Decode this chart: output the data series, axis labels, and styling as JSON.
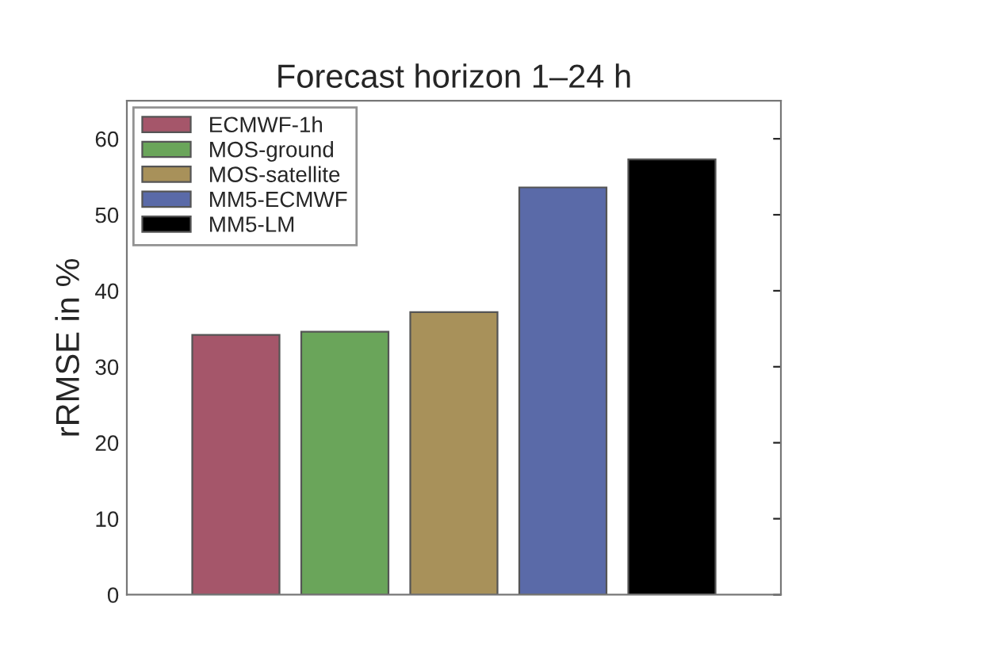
{
  "chart_data": {
    "type": "bar",
    "title": "Forecast horizon 1–24 h",
    "ylabel": "rRMSE in %",
    "categories": [
      null,
      null,
      null,
      null,
      null
    ],
    "series": [
      {
        "name": "ECMWF-1h",
        "color": "#a5566a",
        "values": [
          34.2,
          null,
          null,
          null,
          null
        ]
      },
      {
        "name": "MOS-ground",
        "color": "#6aa55a",
        "values": [
          null,
          34.6,
          null,
          null,
          null
        ]
      },
      {
        "name": "MOS-satellite",
        "color": "#a8915a",
        "values": [
          null,
          null,
          37.2,
          null,
          null
        ]
      },
      {
        "name": "MM5-ECMWF",
        "color": "#5a6aa8",
        "values": [
          null,
          null,
          null,
          53.6,
          null
        ]
      },
      {
        "name": "MM5-LM",
        "color": "#000000",
        "values": [
          null,
          null,
          null,
          null,
          57.3
        ]
      }
    ],
    "ylim": [
      0,
      65
    ],
    "yticks": [
      0,
      10,
      20,
      30,
      40,
      50,
      60
    ],
    "grid": false,
    "legend": "top left",
    "tick_labels": "y"
  }
}
